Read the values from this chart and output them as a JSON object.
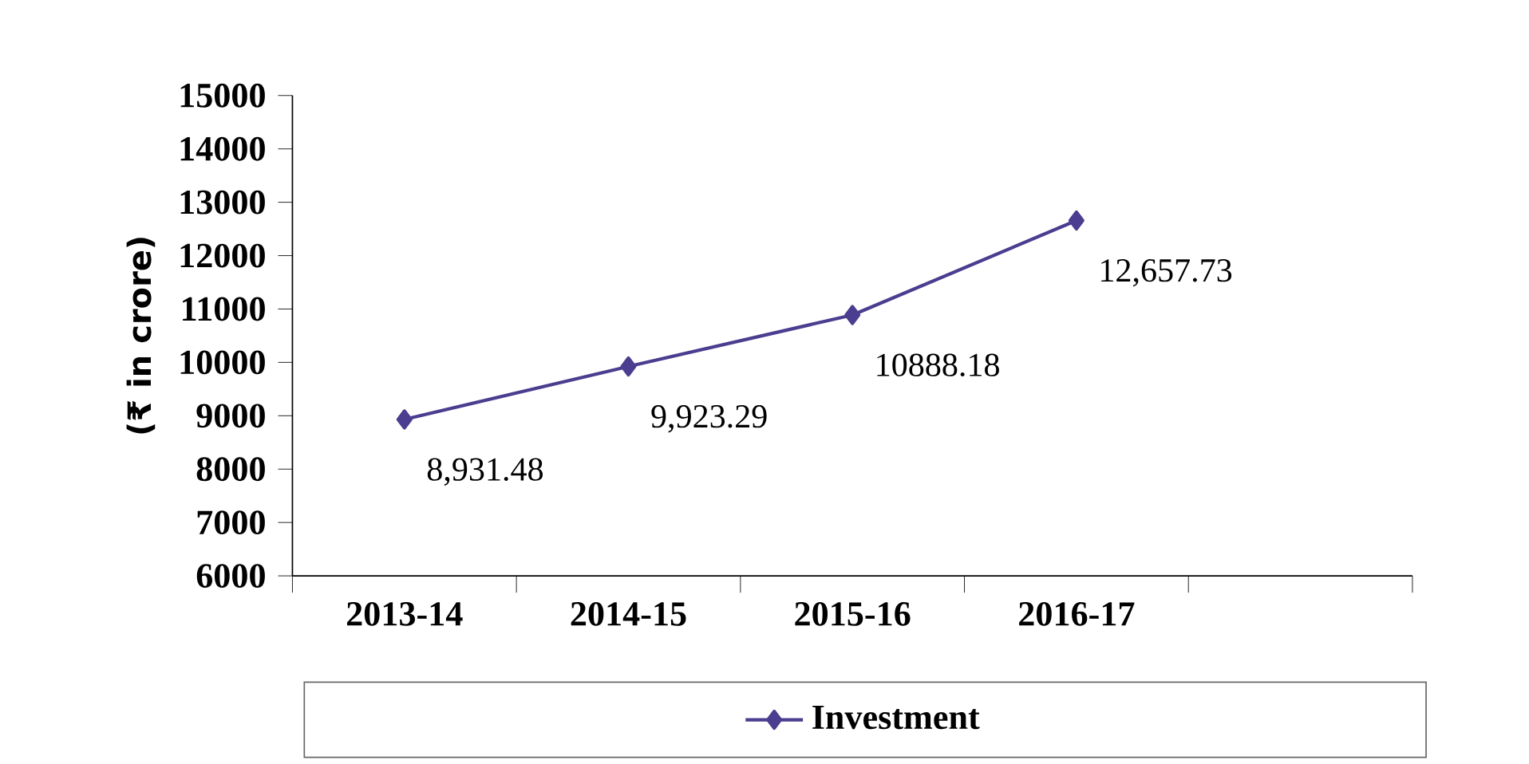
{
  "chart_data": {
    "type": "line",
    "categories": [
      "2013-14",
      "2014-15",
      "2015-16",
      "2016-17",
      null
    ],
    "series": [
      {
        "name": "Investment",
        "color": "#4b3d8f",
        "values": [
          8931.48,
          9923.29,
          10888.18,
          12657.73,
          null
        ],
        "value_labels": [
          "8,931.48",
          "9,923.29",
          "10888.18",
          "12,657.73",
          null
        ]
      }
    ],
    "ylabel": "(₹ in crore)",
    "ylim": [
      6000,
      15000
    ],
    "yticks": [
      6000,
      7000,
      8000,
      9000,
      10000,
      11000,
      12000,
      13000,
      14000,
      15000
    ],
    "grid": false,
    "legend": "bottom",
    "marker": "diamond",
    "line_style": "solid"
  }
}
